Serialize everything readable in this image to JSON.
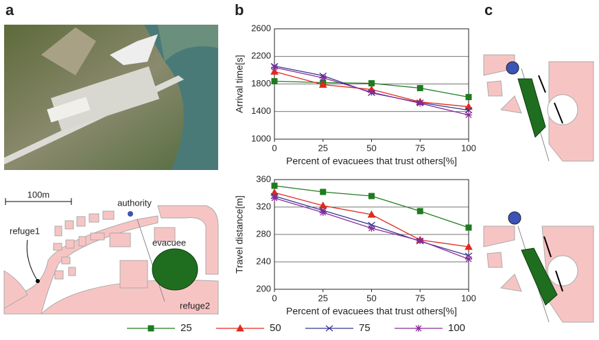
{
  "figure": {
    "panels": [
      "a",
      "b",
      "c"
    ],
    "map_labels": {
      "scale": "100m",
      "authority": "authority",
      "refuge1": "refuge1",
      "evacuee": "evacuee",
      "refuge2": "refuge2"
    }
  },
  "chart_data": [
    {
      "type": "line",
      "ylabel": "Arrival time[s]",
      "xlabel": "Percent of evacuees that trust others[%]",
      "x": [
        0,
        25,
        50,
        75,
        100
      ],
      "xlim": [
        0,
        100
      ],
      "xticks": [
        0,
        25,
        50,
        75,
        100
      ],
      "ylim": [
        1000,
        2600
      ],
      "yticks": [
        1000,
        1400,
        1800,
        2200,
        2600
      ],
      "grid": true,
      "series": [
        {
          "name": "25",
          "color": "#1e7b1e",
          "marker": "square",
          "values": [
            1840,
            1820,
            1810,
            1740,
            1610
          ]
        },
        {
          "name": "50",
          "color": "#e0291d",
          "marker": "triangle",
          "values": [
            1980,
            1790,
            1720,
            1540,
            1470
          ]
        },
        {
          "name": "75",
          "color": "#34348f",
          "marker": "x",
          "values": [
            2060,
            1920,
            1670,
            1530,
            1420
          ]
        },
        {
          "name": "100",
          "color": "#8a2a9a",
          "marker": "star",
          "values": [
            2040,
            1890,
            1680,
            1520,
            1350
          ]
        }
      ]
    },
    {
      "type": "line",
      "ylabel": "Travel distance[m]",
      "xlabel": "Percent of evacuees that trust others[%]",
      "x": [
        0,
        25,
        50,
        75,
        100
      ],
      "xlim": [
        0,
        100
      ],
      "xticks": [
        0,
        25,
        50,
        75,
        100
      ],
      "ylim": [
        200,
        360
      ],
      "yticks": [
        200,
        240,
        280,
        320,
        360
      ],
      "grid": true,
      "series": [
        {
          "color": "#1e7b1e",
          "marker": "square",
          "values": [
            351,
            342,
            336,
            314,
            290
          ]
        },
        {
          "color": "#e0291d",
          "marker": "triangle",
          "values": [
            341,
            322,
            309,
            272,
            262
          ]
        },
        {
          "color": "#34348f",
          "marker": "x",
          "values": [
            336,
            315,
            294,
            270,
            249
          ]
        },
        {
          "color": "#8a2a9a",
          "marker": "star",
          "values": [
            333,
            312,
            289,
            271,
            244
          ]
        }
      ]
    }
  ]
}
